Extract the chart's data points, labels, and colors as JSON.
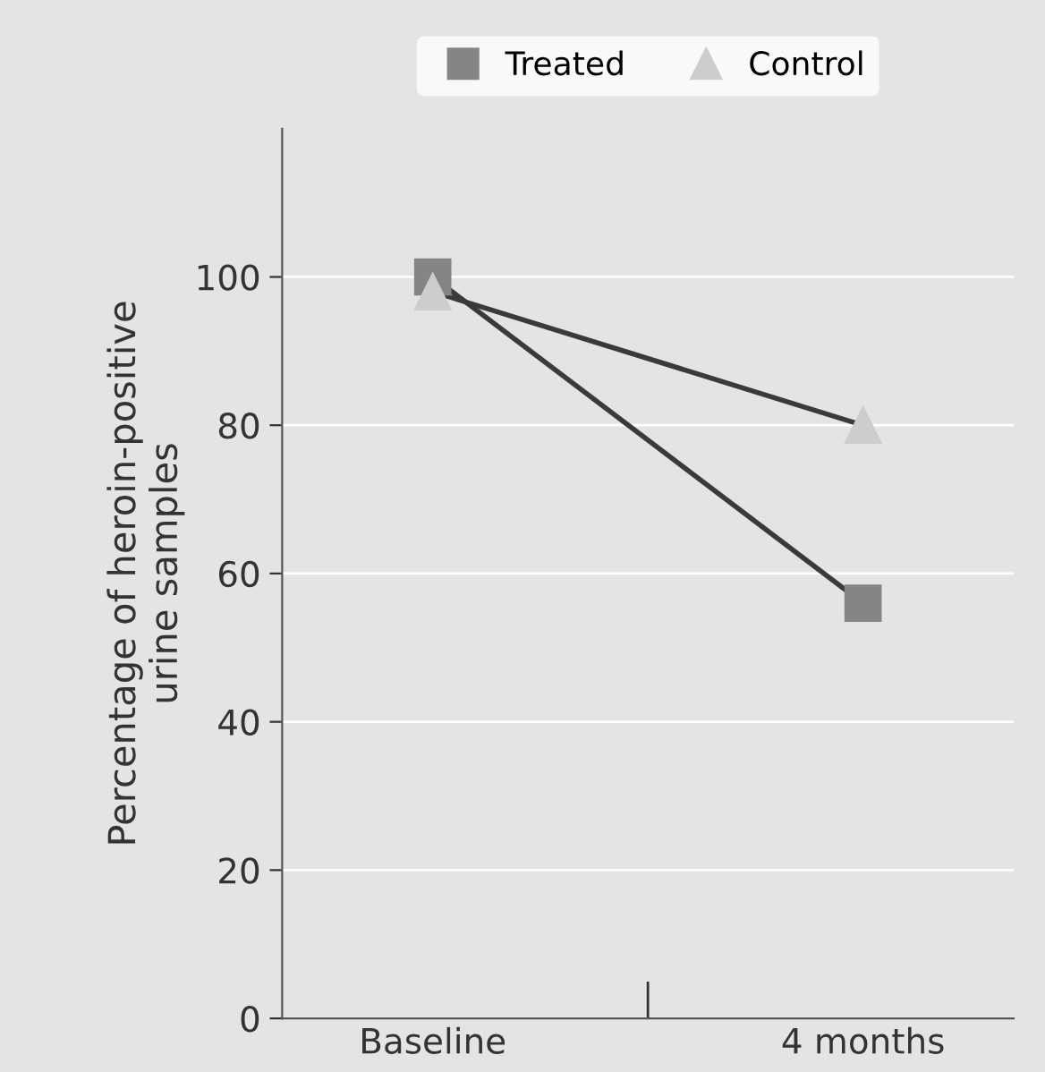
{
  "chart_data": {
    "type": "line",
    "ylabel": "Percentage of heroin-positive\nurine samples",
    "categories": [
      "Baseline",
      "4 months"
    ],
    "series": [
      {
        "name": "Treated",
        "color": "#858585",
        "marker": "square",
        "values": [
          100,
          56
        ]
      },
      {
        "name": "Control",
        "color": "#cdcdcd",
        "marker": "triangle",
        "values": [
          98,
          80
        ]
      }
    ],
    "ylim": [
      0,
      120
    ],
    "yticks": [
      0,
      20,
      40,
      60,
      80,
      100
    ],
    "grid": "y",
    "legend": "top"
  }
}
